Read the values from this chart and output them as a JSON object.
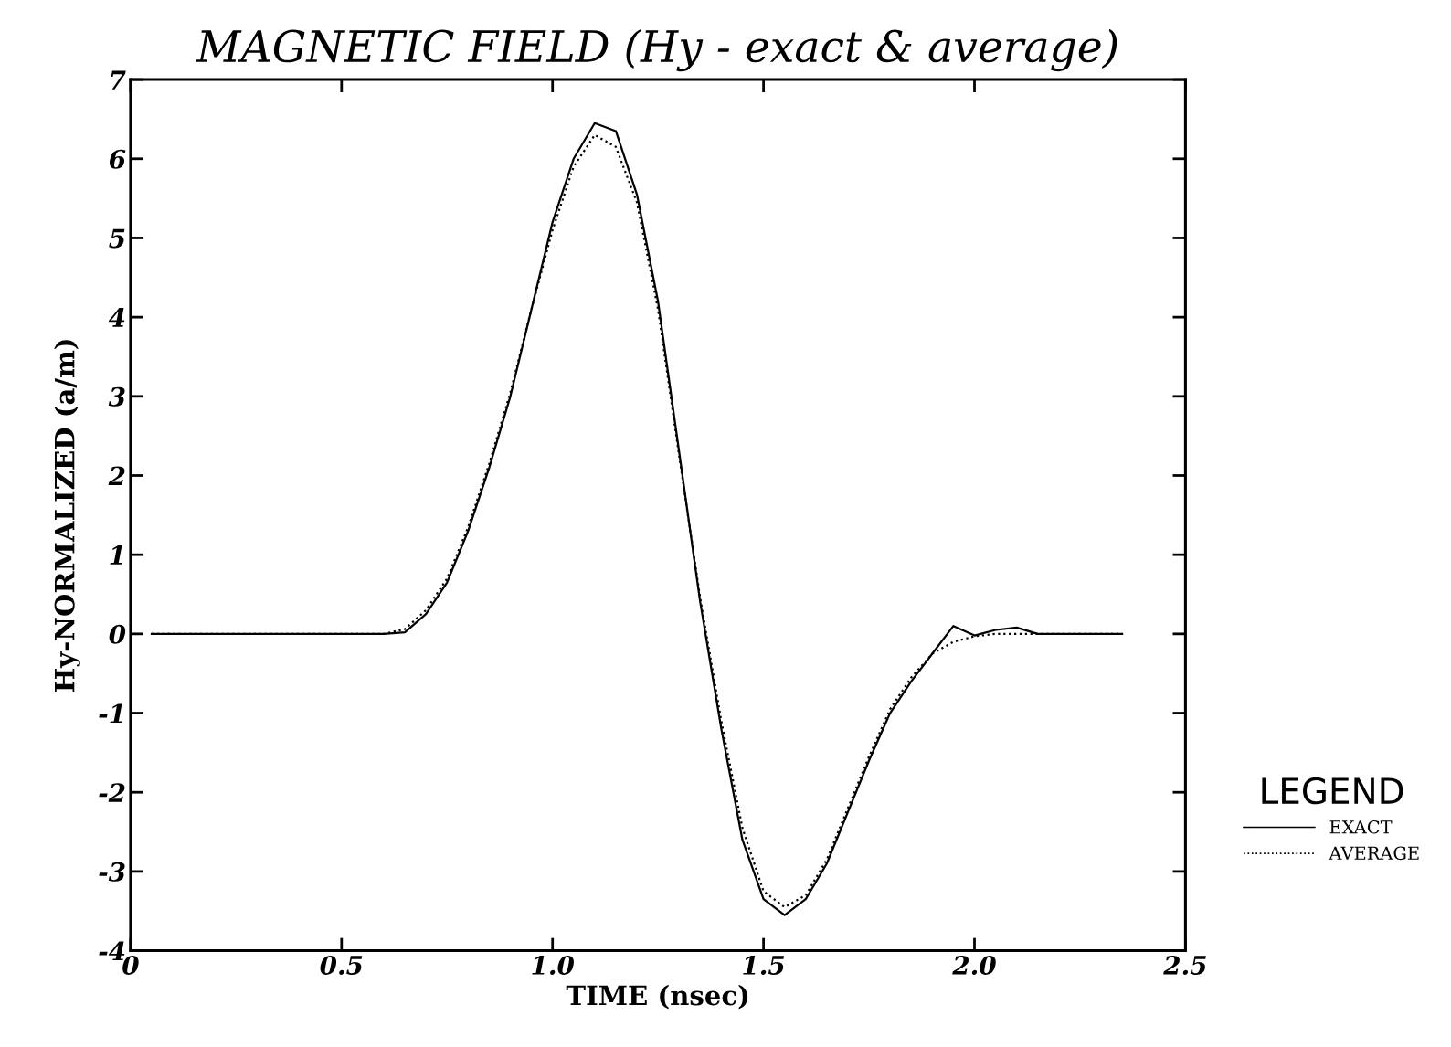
{
  "chart_data": {
    "type": "line",
    "title": "MAGNETIC FIELD (Hy - exact & average)",
    "xlabel": "TIME (nsec)",
    "ylabel": "Hy-NORMALIZED (a/m)",
    "legend_title": "LEGEND",
    "legend": "right",
    "grid": false,
    "marker": "none",
    "xlim": [
      0,
      2.5
    ],
    "ylim": [
      -4,
      7
    ],
    "xticks": [
      0,
      0.5,
      {
        "value": 1,
        "label": "1.0"
      },
      1.5,
      {
        "value": 2,
        "label": "2.0"
      },
      2.5
    ],
    "yticks": [
      -4,
      -3,
      -2,
      -1,
      0,
      1,
      2,
      3,
      4,
      5,
      6,
      7
    ],
    "x": [
      0.05,
      0.6,
      0.65,
      0.7,
      0.75,
      0.8,
      0.85,
      0.9,
      0.95,
      1.0,
      1.05,
      1.1,
      1.15,
      1.2,
      1.25,
      1.3,
      1.35,
      1.4,
      1.45,
      1.5,
      1.55,
      1.6,
      1.65,
      1.7,
      1.75,
      1.8,
      1.85,
      1.9,
      1.95,
      2.0,
      2.05,
      2.1,
      2.15,
      2.35
    ],
    "series": [
      {
        "name": "EXACT",
        "color": "#000000",
        "line_style": "solid",
        "values": [
          0,
          0,
          0.02,
          0.25,
          0.65,
          1.3,
          2.1,
          3.0,
          4.1,
          5.2,
          6.0,
          6.45,
          6.35,
          5.55,
          4.2,
          2.3,
          0.4,
          -1.2,
          -2.6,
          -3.35,
          -3.55,
          -3.35,
          -2.9,
          -2.25,
          -1.6,
          -1.0,
          -0.6,
          -0.25,
          0.1,
          -0.02,
          0.05,
          0.08,
          0,
          0
        ]
      },
      {
        "name": "AVERAGE",
        "color": "#000000",
        "line_style": "dotted",
        "values": [
          0,
          0,
          0.06,
          0.3,
          0.7,
          1.35,
          2.15,
          3.05,
          4.1,
          5.1,
          5.9,
          6.3,
          6.15,
          5.45,
          4.1,
          2.25,
          0.45,
          -1.1,
          -2.45,
          -3.25,
          -3.45,
          -3.3,
          -2.85,
          -2.2,
          -1.55,
          -0.95,
          -0.55,
          -0.25,
          -0.1,
          -0.03,
          0,
          0,
          0,
          0
        ]
      }
    ]
  }
}
